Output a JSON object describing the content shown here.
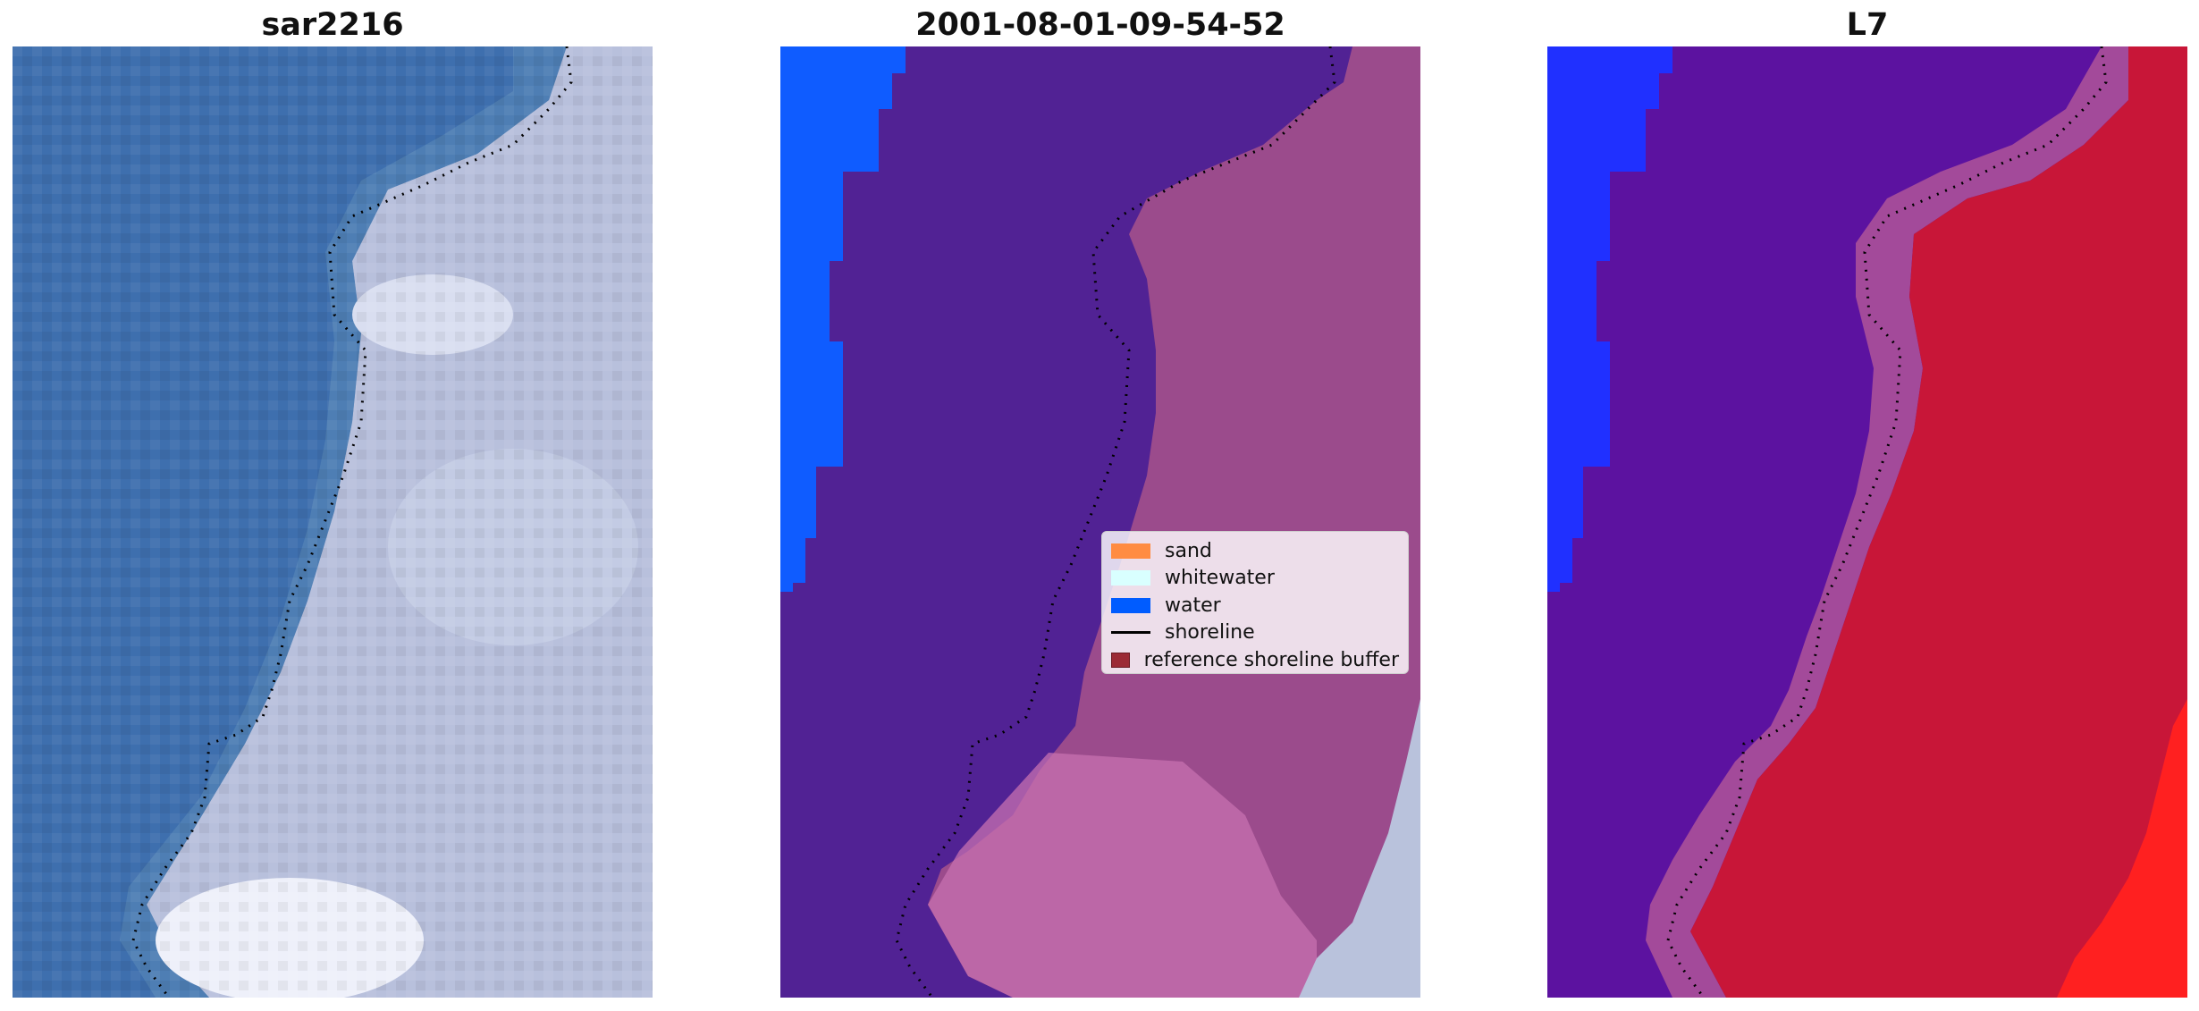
{
  "panels": [
    {
      "id": "rgb",
      "title": "sar2216"
    },
    {
      "id": "classified",
      "title": "2001-08-01-09-54-52"
    },
    {
      "id": "index",
      "title": "L7"
    }
  ],
  "legend": [
    {
      "label": "sand",
      "kind": "patch",
      "color": "#ff8c42"
    },
    {
      "label": "whitewater",
      "kind": "patch",
      "color": "#d9ffff"
    },
    {
      "label": "water",
      "kind": "patch",
      "color": "#005cff"
    },
    {
      "label": "shoreline",
      "kind": "line",
      "color": "#000000"
    },
    {
      "label": "reference shoreline buffer",
      "kind": "patch",
      "color": "#9b2a35"
    }
  ],
  "colors": {
    "ocean_rgb": "#3e6fae",
    "land_rgb": "#b8c0dc",
    "cloud_rgb": "#eef0fa",
    "water_class": "#0f5cff",
    "other_class": "#512294",
    "land_class": "#9b4b8c",
    "land_class_light": "#c770b0",
    "index_water": "#2030ff",
    "index_mid": "#5c12a0",
    "index_land": "#c81638",
    "index_bright": "#ff2020",
    "shoreline": "#000000"
  }
}
